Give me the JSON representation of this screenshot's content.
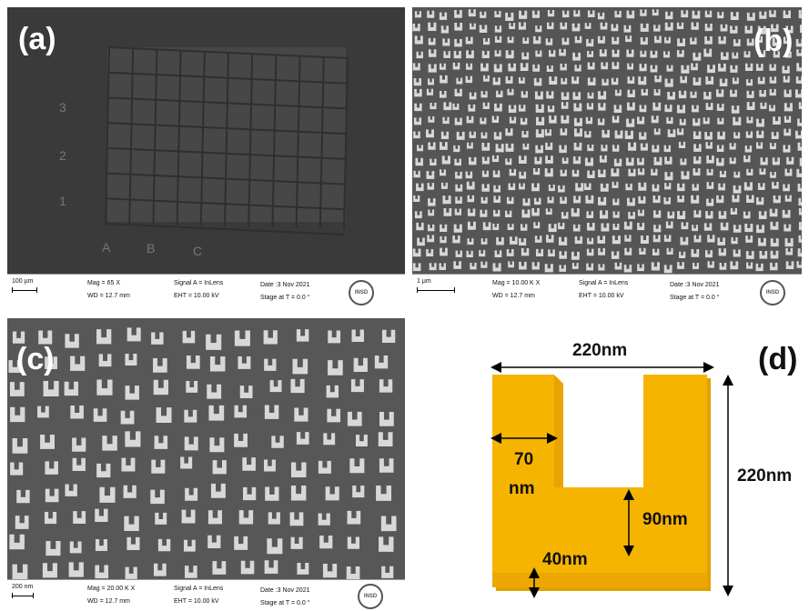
{
  "panels": {
    "a": {
      "label": "(a)",
      "row_labels": [
        "3",
        "2",
        "1"
      ],
      "col_labels": [
        "A",
        "B",
        "C"
      ],
      "info": {
        "scale": "100 µm",
        "mag": "Mag =   65 X",
        "wd": "WD = 12.7 mm",
        "signal": "Signal A = InLens",
        "eht": "EHT = 10.00 kV",
        "date": "Date :3 Nov 2021",
        "stage": "Stage at T =  0.0 °"
      }
    },
    "b": {
      "label": "(b)",
      "info": {
        "scale": "1 µm",
        "mag": "Mag =  10.00 K X",
        "wd": "WD = 12.7 mm",
        "signal": "Signal A = InLens",
        "eht": "EHT = 10.00 kV",
        "date": "Date :3 Nov 2021",
        "stage": "Stage at T =  0.0 °"
      }
    },
    "c": {
      "label": "(c)",
      "info": {
        "scale": "200 nm",
        "mag": "Mag =  20.00 K X",
        "wd": "WD = 12.7 mm",
        "signal": "Signal A = InLens",
        "eht": "EHT = 10.00 kV",
        "date": "Date :3 Nov 2021",
        "stage": "Stage at T =  0.0 °"
      }
    },
    "d": {
      "label": "(d)",
      "dim_width": "220nm",
      "dim_height": "220nm",
      "dim_arm": "70",
      "dim_arm_unit": "nm",
      "dim_gap": "90nm",
      "dim_base": "40nm"
    }
  },
  "logo_text": "INSD",
  "colors": {
    "sem_bg": "#3b3b3b",
    "u_shape": "#f5b400",
    "u_edge": "#e0a200"
  }
}
